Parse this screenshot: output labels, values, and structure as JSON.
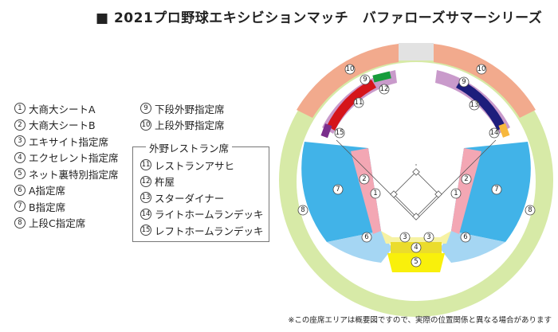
{
  "title": "■ 2021プロ野球エキシビションマッチ　バファローズサマーシリーズ",
  "legend_left": [
    {
      "num": "1",
      "label": "大商大シートA"
    },
    {
      "num": "2",
      "label": "大商大シートB"
    },
    {
      "num": "3",
      "label": "エキサイト指定席"
    },
    {
      "num": "4",
      "label": "エクセレント指定席"
    },
    {
      "num": "5",
      "label": "ネット裏特別指定席"
    },
    {
      "num": "6",
      "label": "A指定席"
    },
    {
      "num": "7",
      "label": "B指定席"
    },
    {
      "num": "8",
      "label": "上段C指定席"
    }
  ],
  "legend_right": [
    {
      "num": "9",
      "label": "下段外野指定席"
    },
    {
      "num": "10",
      "label": "上段外野指定席"
    }
  ],
  "outfield_heading": "外野レストラン席",
  "outfield_items": [
    {
      "num": "11",
      "label": "レストランアサヒ"
    },
    {
      "num": "12",
      "label": "杵屋"
    },
    {
      "num": "13",
      "label": "スターダイナー"
    },
    {
      "num": "14",
      "label": "ライトホームランデッキ"
    },
    {
      "num": "15",
      "label": "レフトホームランデッキ"
    }
  ],
  "footnote": "※この座席エリアは概要図ですので、実際の位置関係と異なる場合があります",
  "colors": {
    "upper_c": "#d7eaa7",
    "upper_outfield": "#f2aa8d",
    "lower_outfield": "#c99acb",
    "b_seat": "#41b3e8",
    "a_seat": "#a5d6f3",
    "daisho": "#f3a7b4",
    "excite": "#f6f2a3",
    "excellent": "#ebdc2c",
    "net_special": "#f9f00b",
    "asahi": "#d5141a",
    "kineya": "#169c3b",
    "star_diner": "#1d1d7c",
    "right_deck": "#f7b83d",
    "left_deck": "#7a2e8c",
    "grey": "#e2e2e2"
  },
  "map_labels": [
    {
      "id": "10-left",
      "text": "10"
    },
    {
      "id": "10-right",
      "text": "10"
    },
    {
      "id": "9-left",
      "text": "9"
    },
    {
      "id": "9-right",
      "text": "9"
    },
    {
      "id": "12",
      "text": "12"
    },
    {
      "id": "11",
      "text": "11"
    },
    {
      "id": "13",
      "text": "13"
    },
    {
      "id": "15",
      "text": "15"
    },
    {
      "id": "14",
      "text": "14"
    },
    {
      "id": "7-left",
      "text": "7"
    },
    {
      "id": "7-right",
      "text": "7"
    },
    {
      "id": "2-left",
      "text": "2"
    },
    {
      "id": "2-right",
      "text": "2"
    },
    {
      "id": "1-left",
      "text": "1"
    },
    {
      "id": "1-right",
      "text": "1"
    },
    {
      "id": "8-left",
      "text": "8"
    },
    {
      "id": "8-right",
      "text": "8"
    },
    {
      "id": "6-left",
      "text": "6"
    },
    {
      "id": "6-right",
      "text": "6"
    },
    {
      "id": "3-left",
      "text": "3"
    },
    {
      "id": "3-right",
      "text": "3"
    },
    {
      "id": "4",
      "text": "4"
    },
    {
      "id": "5",
      "text": "5"
    }
  ]
}
